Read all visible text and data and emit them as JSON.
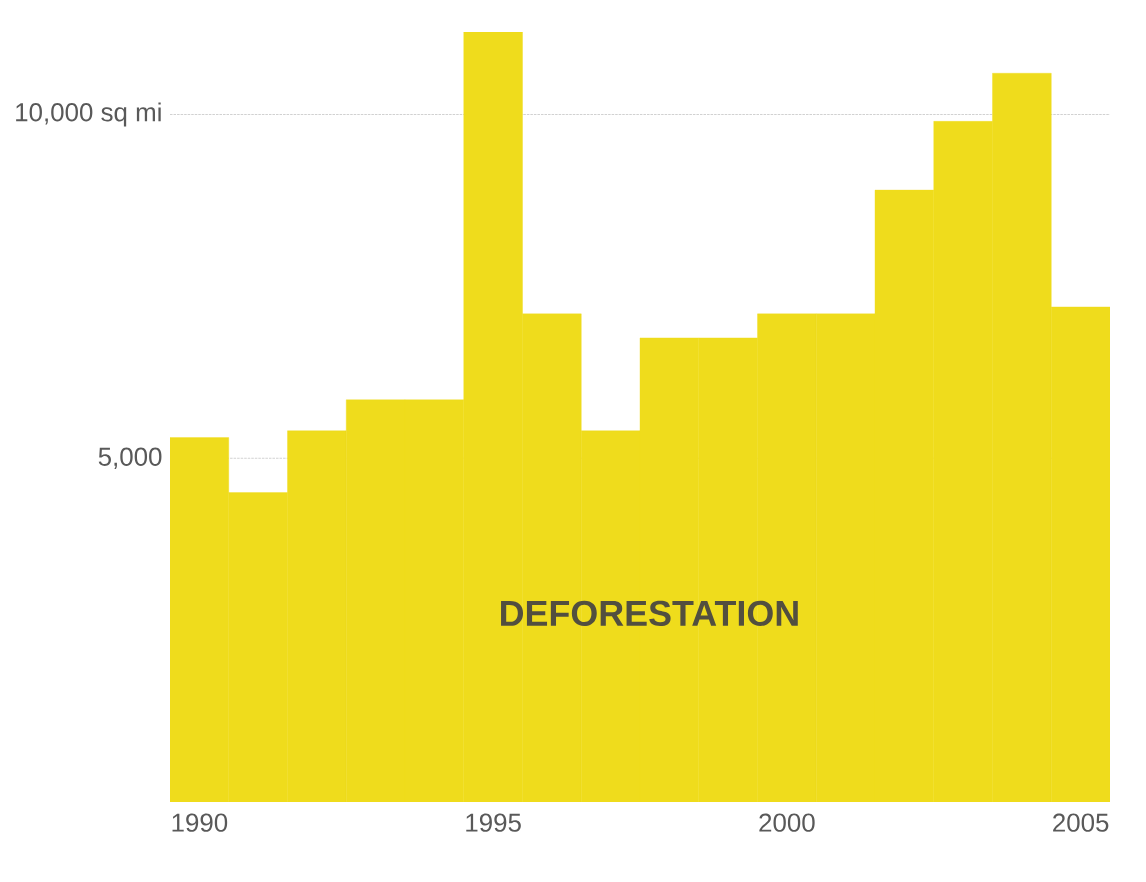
{
  "chart_data": {
    "type": "bar",
    "x": [
      1990,
      1991,
      1992,
      1993,
      1994,
      1995,
      1996,
      1997,
      1998,
      1999,
      2000,
      2001,
      2002,
      2003,
      2004,
      2005
    ],
    "values": [
      5300,
      4500,
      5400,
      5850,
      5850,
      11200,
      7100,
      5400,
      6750,
      6750,
      7100,
      7100,
      8900,
      9900,
      10600,
      7200
    ],
    "color": "#efdc1c",
    "xlim": [
      1989.5,
      2005.5
    ],
    "ylim": [
      0,
      11200
    ],
    "xticks": [
      1990,
      1995,
      2000,
      2005
    ],
    "yticks": [
      {
        "value": 5000,
        "label": "5,000"
      },
      {
        "value": 10000,
        "label": "10,000 sq mi"
      }
    ],
    "grid": "y",
    "annotations": [
      "DEFORESTATION"
    ]
  }
}
